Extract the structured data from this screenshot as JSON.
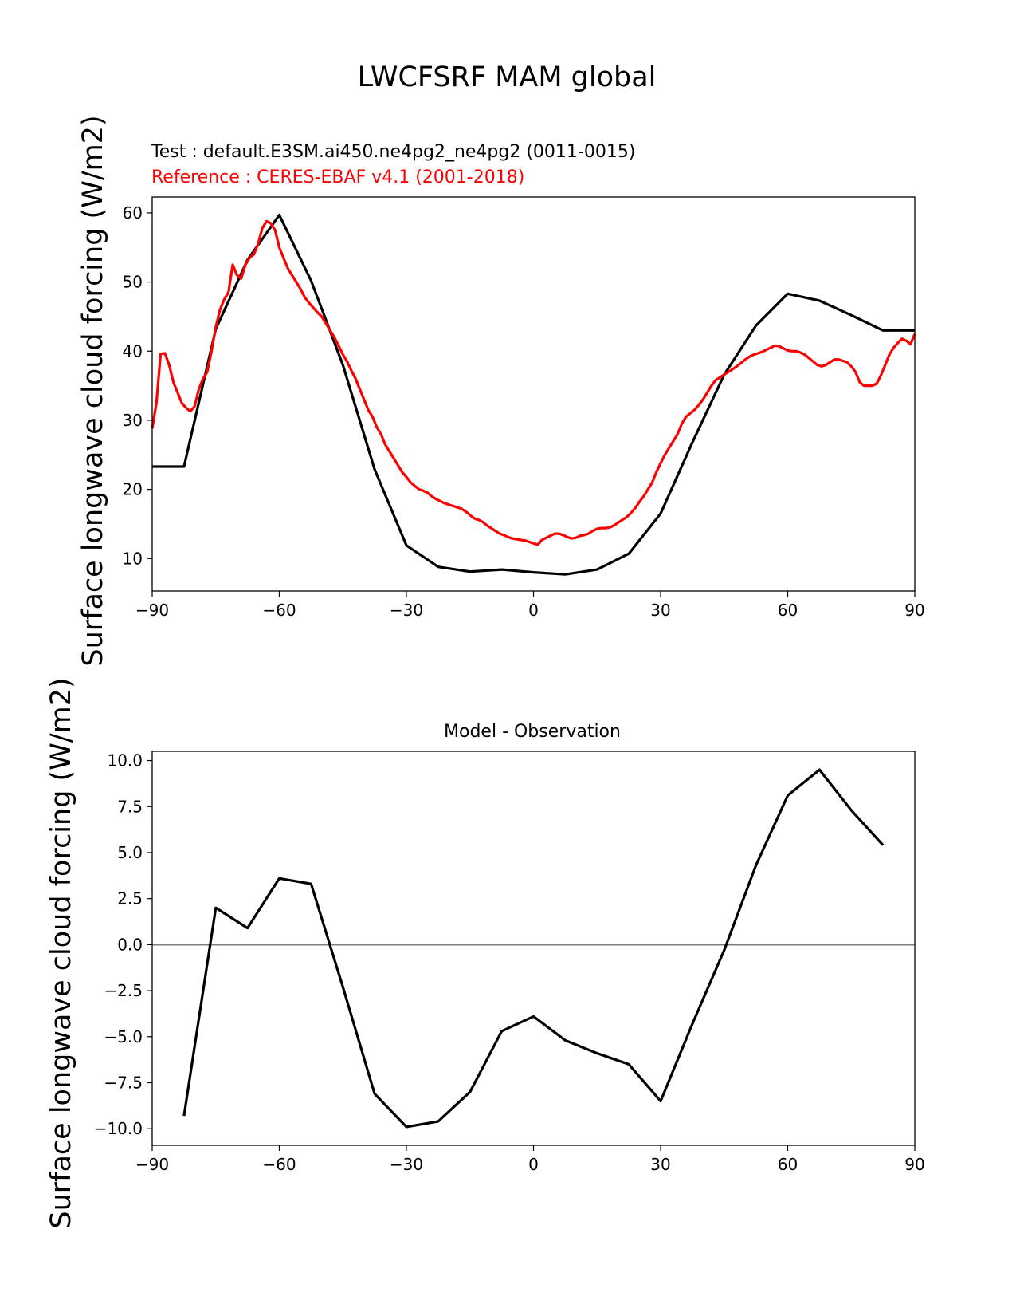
{
  "figure": {
    "suptitle": "LWCFSRF MAM global",
    "colors": {
      "test": "#000000",
      "reference": "#ff0000",
      "zero_line": "#808080"
    }
  },
  "chart_data": [
    {
      "type": "line",
      "title_test": "Test : default.E3SM.ai450.ne4pg2_ne4pg2 (0011-0015)",
      "title_reference": "Reference : CERES-EBAF v4.1 (2001-2018)",
      "xlabel": "",
      "ylabel": "Surface longwave cloud forcing (W/m2)",
      "xlim": [
        -90,
        90
      ],
      "ylim": [
        5.3,
        62.3
      ],
      "xticks": [
        -90,
        -60,
        -30,
        0,
        30,
        60,
        90
      ],
      "xtick_labels": [
        "−90",
        "−60",
        "−30",
        "0",
        "30",
        "60",
        "90"
      ],
      "yticks": [
        10,
        20,
        30,
        40,
        50,
        60
      ],
      "ytick_labels": [
        "10",
        "20",
        "30",
        "40",
        "50",
        "60"
      ],
      "grid": false,
      "series": [
        {
          "color": "#000000",
          "x": [
            -90,
            -82.5,
            -75,
            -67.5,
            -60,
            -52.5,
            -45,
            -37.5,
            -30,
            -22.5,
            -15,
            -7.5,
            0,
            7.5,
            15,
            22.5,
            30,
            37.5,
            45,
            52.5,
            60,
            67.5,
            75,
            82.5,
            90
          ],
          "y": [
            23.3,
            23.3,
            43.2,
            53.2,
            59.7,
            50.2,
            38.0,
            22.9,
            11.9,
            8.8,
            8.1,
            8.4,
            8.0,
            7.7,
            8.4,
            10.7,
            16.5,
            26.8,
            36.6,
            43.7,
            48.3,
            47.3,
            45.2,
            43.0,
            43.0
          ]
        },
        {
          "color": "#ff0000",
          "x": [
            -90,
            -89,
            -88,
            -87,
            -86,
            -85,
            -84,
            -83,
            -82,
            -81,
            -80,
            -79,
            -78,
            -77,
            -76,
            -75,
            -74,
            -73,
            -72,
            -71,
            -70,
            -69,
            -68,
            -67,
            -66,
            -65,
            -64,
            -63,
            -62,
            -61,
            -60,
            -59,
            -58,
            -57,
            -56,
            -55,
            -54,
            -53,
            -52,
            -51,
            -50,
            -49,
            -48,
            -47,
            -46,
            -45,
            -44,
            -43,
            -42,
            -41,
            -40,
            -39,
            -38,
            -37,
            -36,
            -35,
            -34,
            -33,
            -32,
            -31,
            -30,
            -29,
            -28,
            -27,
            -26,
            -25,
            -24,
            -23,
            -22,
            -21,
            -20,
            -19,
            -18,
            -17,
            -16,
            -15,
            -14,
            -13,
            -12,
            -11,
            -10,
            -9,
            -8,
            -7,
            -6,
            -5,
            -4,
            -3,
            -2,
            -1,
            0,
            1,
            2,
            3,
            4,
            5,
            6,
            7,
            8,
            9,
            10,
            11,
            12,
            13,
            14,
            15,
            16,
            17,
            18,
            19,
            20,
            21,
            22,
            23,
            24,
            25,
            26,
            27,
            28,
            29,
            30,
            31,
            32,
            33,
            34,
            35,
            36,
            37,
            38,
            39,
            40,
            41,
            42,
            43,
            44,
            45,
            46,
            47,
            48,
            49,
            50,
            51,
            52,
            53,
            54,
            55,
            56,
            57,
            58,
            59,
            60,
            61,
            62,
            63,
            64,
            65,
            66,
            67,
            68,
            69,
            70,
            71,
            72,
            73,
            74,
            75,
            76,
            77,
            78,
            79,
            80,
            81,
            82,
            83,
            84,
            85,
            86,
            87,
            88,
            89,
            90
          ],
          "y": [
            28.8,
            32.5,
            39.6,
            39.7,
            38.0,
            35.5,
            34.0,
            32.5,
            31.8,
            31.3,
            32.0,
            34.5,
            36.0,
            37.0,
            40.0,
            43.5,
            46.0,
            47.5,
            48.5,
            52.5,
            51.0,
            50.5,
            52.5,
            53.5,
            54.0,
            55.5,
            57.8,
            58.8,
            58.5,
            57.5,
            55.0,
            53.5,
            52.0,
            51.0,
            50.0,
            49.0,
            47.8,
            47.0,
            46.3,
            45.6,
            45.0,
            44.0,
            43.0,
            42.0,
            40.8,
            39.5,
            38.5,
            37.2,
            36.0,
            34.5,
            33.0,
            31.5,
            30.5,
            29.0,
            28.0,
            26.5,
            25.5,
            24.5,
            23.5,
            22.5,
            21.8,
            21.0,
            20.5,
            20.0,
            19.8,
            19.5,
            19.0,
            18.6,
            18.3,
            18.0,
            17.8,
            17.6,
            17.4,
            17.2,
            16.8,
            16.3,
            15.8,
            15.6,
            15.3,
            14.8,
            14.4,
            14.0,
            13.6,
            13.4,
            13.1,
            12.9,
            12.8,
            12.7,
            12.6,
            12.4,
            12.2,
            12.0,
            12.7,
            13.0,
            13.3,
            13.6,
            13.6,
            13.4,
            13.1,
            12.9,
            13.0,
            13.3,
            13.4,
            13.6,
            14.0,
            14.3,
            14.4,
            14.4,
            14.5,
            14.8,
            15.2,
            15.6,
            16.0,
            16.6,
            17.3,
            18.2,
            19.0,
            20.0,
            21.0,
            22.5,
            23.8,
            25.0,
            26.0,
            27.0,
            28.0,
            29.5,
            30.5,
            31.0,
            31.5,
            32.2,
            33.0,
            34.0,
            35.0,
            35.8,
            36.2,
            36.6,
            37.0,
            37.4,
            37.8,
            38.3,
            38.8,
            39.2,
            39.5,
            39.7,
            39.9,
            40.2,
            40.5,
            40.8,
            40.7,
            40.4,
            40.1,
            40.0,
            40.0,
            39.8,
            39.5,
            39.0,
            38.5,
            38.0,
            37.8,
            38.0,
            38.4,
            38.8,
            38.8,
            38.6,
            38.4,
            37.8,
            37.0,
            35.5,
            35.0,
            35.0,
            35.0,
            35.3,
            36.5,
            38.0,
            39.5,
            40.5,
            41.2,
            41.8,
            41.5,
            41.0,
            42.5
          ]
        }
      ]
    },
    {
      "type": "line",
      "title": "Model - Observation",
      "xlabel": "",
      "ylabel": "Surface longwave cloud forcing (W/m2)",
      "xlim": [
        -90,
        90
      ],
      "ylim": [
        -10.9,
        10.5
      ],
      "xticks": [
        -90,
        -60,
        -30,
        0,
        30,
        60,
        90
      ],
      "xtick_labels": [
        "−90",
        "−60",
        "−30",
        "0",
        "30",
        "60",
        "90"
      ],
      "yticks": [
        10.0,
        7.5,
        5.0,
        2.5,
        0.0,
        -2.5,
        -5.0,
        -7.5,
        -10.0
      ],
      "ytick_labels": [
        "10.0",
        "7.5",
        "5.0",
        "2.5",
        "0.0",
        "−2.5",
        "−5.0",
        "−7.5",
        "−10.0"
      ],
      "grid": false,
      "zero_line": 0,
      "series": [
        {
          "color": "#000000",
          "x": [
            -82.5,
            -75,
            -67.5,
            -60,
            -52.5,
            -45,
            -37.5,
            -30,
            -22.5,
            -15,
            -7.5,
            0,
            7.5,
            15,
            22.5,
            30,
            37.5,
            45,
            52.5,
            60,
            67.5,
            75,
            82.5
          ],
          "y": [
            -9.3,
            2.0,
            0.9,
            3.6,
            3.3,
            -2.3,
            -8.1,
            -9.9,
            -9.6,
            -8.0,
            -4.7,
            -3.9,
            -5.2,
            -5.9,
            -6.5,
            -8.5,
            -4.3,
            -0.3,
            4.3,
            8.1,
            9.5,
            7.3,
            5.4
          ]
        }
      ]
    }
  ]
}
